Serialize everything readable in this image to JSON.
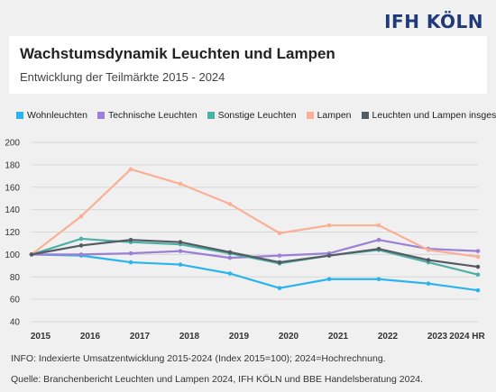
{
  "brand": "IFH KÖLN",
  "header": {
    "title": "Wachstumsdynamik Leuchten und Lampen",
    "subtitle": "Entwicklung der Teilmärkte 2015 - 2024"
  },
  "chart_data": {
    "type": "line",
    "categories": [
      "2015",
      "2016",
      "2017",
      "2018",
      "2019",
      "2020",
      "2021",
      "2022",
      "2023",
      "2024 HR"
    ],
    "ylim": [
      40,
      200
    ],
    "yticks": [
      40,
      60,
      80,
      100,
      120,
      140,
      160,
      180,
      200
    ],
    "grid": true,
    "legend_position": "top",
    "series": [
      {
        "name": "Wohnleuchten",
        "color": "#2ab4ee",
        "values": [
          100,
          99,
          93,
          91,
          83,
          70,
          78,
          78,
          74,
          68
        ]
      },
      {
        "name": "Technische Leuchten",
        "color": "#9b7fd6",
        "values": [
          100,
          100,
          101,
          103,
          97,
          99,
          101,
          113,
          105,
          103
        ]
      },
      {
        "name": "Sonstige Leuchten",
        "color": "#4bb0a6",
        "values": [
          100,
          114,
          111,
          109,
          101,
          92,
          99,
          104,
          93,
          82
        ]
      },
      {
        "name": "Lampen",
        "color": "#f9b094",
        "values": [
          100,
          134,
          176,
          163,
          145,
          119,
          126,
          126,
          104,
          98
        ]
      },
      {
        "name": "Leuchten und Lampen insgesamt",
        "color": "#545b63",
        "values": [
          100,
          108,
          113,
          111,
          102,
          93,
          99,
          105,
          95,
          89
        ]
      }
    ]
  },
  "footer": {
    "info": "INFO: Indexierte Umsatzentwicklung 2015-2024 (Index 2015=100); 2024=Hochrechnung.",
    "source": "Quelle: Branchenbericht Leuchten und Lampen 2024, IFH KÖLN und BBE Handelsberatung 2024."
  }
}
